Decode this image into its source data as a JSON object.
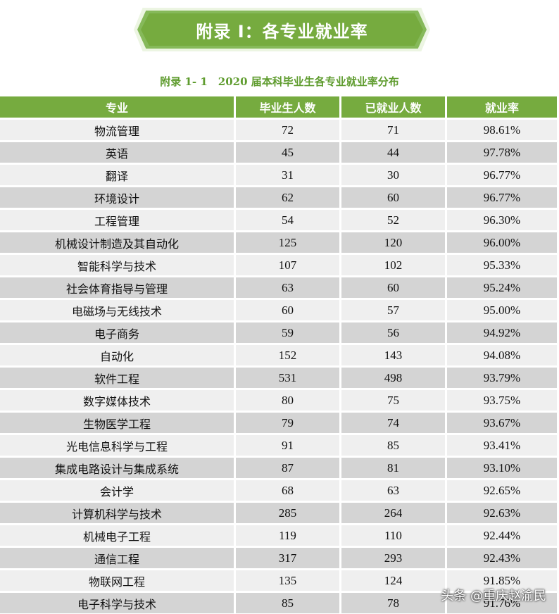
{
  "banner": {
    "title": "附录 I：各专业就业率"
  },
  "caption": "附录 1- 1　2020 届本科毕业生各专业就业率分布",
  "table": {
    "headers": [
      "专业",
      "毕业生人数",
      "已就业人数",
      "就业率"
    ],
    "rows": [
      [
        "物流管理",
        "72",
        "71",
        "98.61%"
      ],
      [
        "英语",
        "45",
        "44",
        "97.78%"
      ],
      [
        "翻译",
        "31",
        "30",
        "96.77%"
      ],
      [
        "环境设计",
        "62",
        "60",
        "96.77%"
      ],
      [
        "工程管理",
        "54",
        "52",
        "96.30%"
      ],
      [
        "机械设计制造及其自动化",
        "125",
        "120",
        "96.00%"
      ],
      [
        "智能科学与技术",
        "107",
        "102",
        "95.33%"
      ],
      [
        "社会体育指导与管理",
        "63",
        "60",
        "95.24%"
      ],
      [
        "电磁场与无线技术",
        "60",
        "57",
        "95.00%"
      ],
      [
        "电子商务",
        "59",
        "56",
        "94.92%"
      ],
      [
        "自动化",
        "152",
        "143",
        "94.08%"
      ],
      [
        "软件工程",
        "531",
        "498",
        "93.79%"
      ],
      [
        "数字媒体技术",
        "80",
        "75",
        "93.75%"
      ],
      [
        "生物医学工程",
        "79",
        "74",
        "93.67%"
      ],
      [
        "光电信息科学与工程",
        "91",
        "85",
        "93.41%"
      ],
      [
        "集成电路设计与集成系统",
        "87",
        "81",
        "93.10%"
      ],
      [
        "会计学",
        "68",
        "63",
        "92.65%"
      ],
      [
        "计算机科学与技术",
        "285",
        "264",
        "92.63%"
      ],
      [
        "机械电子工程",
        "119",
        "110",
        "92.44%"
      ],
      [
        "通信工程",
        "317",
        "293",
        "92.43%"
      ],
      [
        "物联网工程",
        "135",
        "124",
        "91.85%"
      ],
      [
        "电子科学与技术",
        "85",
        "78",
        "91.76%"
      ]
    ]
  },
  "watermark": "头条 @重庆赵渝民"
}
